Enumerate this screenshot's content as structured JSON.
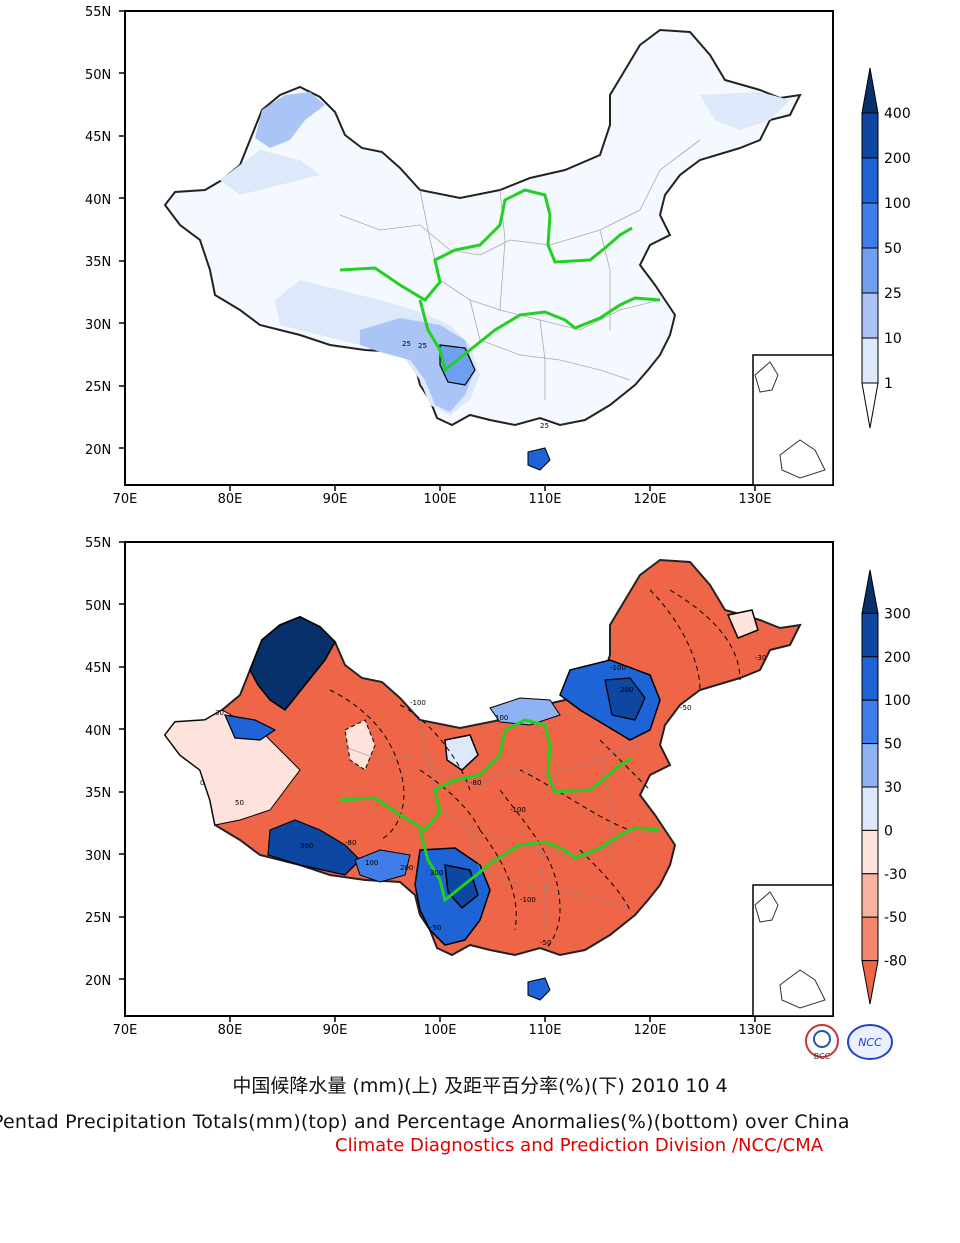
{
  "top_map": {
    "lat_labels": [
      "55N",
      "50N",
      "45N",
      "40N",
      "35N",
      "30N",
      "25N",
      "20N"
    ],
    "lon_labels": [
      "70E",
      "80E",
      "90E",
      "100E",
      "110E",
      "120E",
      "130E"
    ],
    "contour_labels": [
      "25",
      "25",
      "25"
    ],
    "colorbar": {
      "labels": [
        "400",
        "200",
        "100",
        "50",
        "25",
        "10",
        "1"
      ],
      "colors": [
        "#08306b",
        "#0d47a1",
        "#1e64d6",
        "#3f7de8",
        "#6f9ff0",
        "#a9c4f5",
        "#dde8fb",
        "#ffffff"
      ]
    }
  },
  "bottom_map": {
    "lat_labels": [
      "55N",
      "50N",
      "45N",
      "40N",
      "35N",
      "30N",
      "25N",
      "20N"
    ],
    "lon_labels": [
      "70E",
      "80E",
      "90E",
      "100E",
      "110E",
      "120E",
      "130E"
    ],
    "contour_labels": [
      "-100",
      "-80",
      "-50",
      "-30",
      "0",
      "30",
      "50",
      "100",
      "200",
      "300",
      "-100",
      "-80",
      "-100",
      "-50",
      "300",
      "200",
      "100",
      "-50",
      "-100"
    ],
    "colorbar": {
      "labels": [
        "300",
        "200",
        "100",
        "50",
        "30",
        "0",
        "-30",
        "-50",
        "-80"
      ],
      "colors": [
        "#08306b",
        "#0d47a1",
        "#1e64d6",
        "#3f7de8",
        "#8fb2f2",
        "#dde8fb",
        "#fde3dc",
        "#f9b3a1",
        "#f4866d",
        "#ef6548"
      ]
    }
  },
  "captions": {
    "cn": "中国候降水量 (mm)(上) 及距平百分率(%)(下) 2010 10 4",
    "en": "Pentad Precipitation Totals(mm)(top) and Percentage Anormalies(%)(bottom) over China",
    "org": "Climate Diagnostics and Prediction Division /NCC/CMA"
  },
  "logos": {
    "left": "BCC",
    "right": "NCC"
  },
  "colors": {
    "river": "#22d022",
    "border": "#222222",
    "province": "#aaaaaa"
  }
}
